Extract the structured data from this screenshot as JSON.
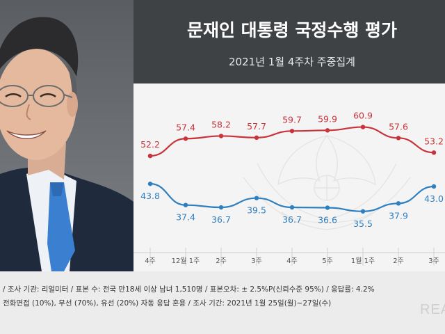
{
  "header": {
    "title": "문재인 대통령 국정수행 평가",
    "subtitle": "2021년 1월 4주차 주중집계"
  },
  "footer": {
    "note1": "/ 조사 기관: 리얼미터 / 표본 수: 전국 만18세 이상 남녀 1,510명 / 표본오차: ± 2.5%P(신뢰수준 95%) / 응답률: 4.2%",
    "note2": "전화면접 (10%), 무선 (70%), 유선 (20%) 자동 응답 혼용 / 조사 기간: 2021년 1월 25일(월)~27일(수)",
    "brand": "REA"
  },
  "chart_data": {
    "type": "line",
    "categories": [
      "4주",
      "12월 1주",
      "2주",
      "3주",
      "4주",
      "5주",
      "1월 1주",
      "2주",
      "3주"
    ],
    "series": [
      {
        "color": "#c8323a",
        "values": [
          52.2,
          57.4,
          58.2,
          57.7,
          59.7,
          59.9,
          60.9,
          57.6,
          53.2
        ]
      },
      {
        "color": "#2f7fbf",
        "values": [
          43.8,
          37.4,
          36.7,
          39.5,
          36.7,
          36.6,
          35.5,
          37.9,
          43.0
        ]
      }
    ],
    "value_labels": [
      [
        "52.2",
        "57.4",
        "58.2",
        "57.7",
        "59.7",
        "59.9",
        "60.9",
        "57.6",
        "53.2"
      ],
      [
        "43.8",
        "37.4",
        "36.7",
        "39.5",
        "36.7",
        "36.6",
        "35.5",
        "37.9",
        "43.0"
      ]
    ]
  },
  "colors": {
    "header_bg": "#3f4245",
    "plot_bg": "#f4f4f4",
    "red_series": "#c8323a",
    "blue_series": "#2f7fbf"
  }
}
